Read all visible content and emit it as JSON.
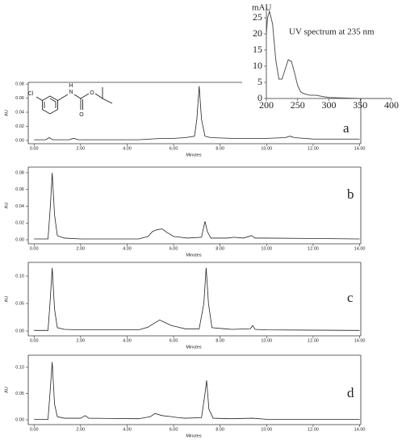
{
  "chart_data": [
    {
      "type": "line",
      "title": "UV spectrum  at 235 nm",
      "ylabel": "mAU",
      "color": "#555555",
      "x": [
        200,
        202,
        205,
        210,
        215,
        220,
        225,
        230,
        235,
        240,
        245,
        250,
        255,
        260,
        270,
        280,
        290,
        300,
        350,
        400
      ],
      "values": [
        20,
        25,
        27,
        23,
        12,
        6,
        6,
        9,
        12,
        11.5,
        8,
        4,
        2,
        1.5,
        1,
        1,
        0.6,
        0.3,
        0,
        0
      ],
      "xlim": [
        200,
        400
      ],
      "xticks": [
        200,
        250,
        300,
        350,
        400
      ],
      "ylim": [
        0,
        28
      ],
      "yticks": [
        0,
        5,
        10,
        15,
        20,
        25
      ]
    },
    {
      "type": "line",
      "panel_label": "a",
      "xlabel": "Minutes",
      "ylabel": "AU",
      "color": "#222222",
      "annotations": [
        "Cl",
        "H",
        "N",
        "O",
        "O"
      ],
      "x": [
        0,
        0.5,
        0.65,
        0.8,
        1.5,
        1.7,
        1.9,
        4.5,
        5.0,
        5.5,
        6.0,
        6.5,
        6.9,
        7.0,
        7.1,
        7.2,
        7.35,
        7.6,
        8.5,
        10.0,
        10.8,
        11.0,
        11.2,
        12,
        14
      ],
      "values": [
        0.001,
        0.001,
        0.004,
        0.001,
        0.001,
        0.003,
        0.001,
        0.001,
        0.002,
        0.003,
        0.003,
        0.004,
        0.006,
        0.03,
        0.077,
        0.03,
        0.006,
        0.004,
        0.003,
        0.003,
        0.004,
        0.006,
        0.004,
        0.002,
        0.002
      ],
      "xlim": [
        -0.25,
        14.05
      ],
      "xticks": [
        {
          "value": 0,
          "label": "0.00"
        },
        {
          "value": 2,
          "label": "2.00"
        },
        {
          "value": 4,
          "label": "4.00"
        },
        {
          "value": 6,
          "label": "6.00"
        },
        {
          "value": 8,
          "label": "8.00"
        },
        {
          "value": 10,
          "label": "10.00"
        },
        {
          "value": 12,
          "label": "12.00"
        },
        {
          "value": 14,
          "label": "14.00"
        }
      ],
      "ylim": [
        -0.0046,
        0.0823
      ],
      "yticks": [
        {
          "value": 0,
          "label": "0.00"
        },
        {
          "value": 0.02,
          "label": "0.02"
        },
        {
          "value": 0.04,
          "label": "0.04"
        },
        {
          "value": 0.06,
          "label": "0.06"
        },
        {
          "value": 0.08,
          "label": "0.08"
        }
      ]
    },
    {
      "type": "line",
      "panel_label": "b",
      "xlabel": "Minutes",
      "ylabel": "AU",
      "color": "#222222",
      "x": [
        0,
        0.6,
        0.7,
        0.78,
        0.88,
        1.0,
        1.3,
        2,
        4.5,
        4.9,
        5.1,
        5.3,
        5.5,
        5.7,
        6.0,
        6.3,
        6.6,
        7.2,
        7.35,
        7.45,
        7.6,
        8.3,
        8.6,
        9.0,
        9.35,
        9.5,
        10,
        14
      ],
      "values": [
        0.001,
        0.001,
        0.04,
        0.08,
        0.03,
        0.005,
        0.002,
        0.001,
        0.001,
        0.004,
        0.01,
        0.012,
        0.013,
        0.009,
        0.004,
        0.003,
        0.002,
        0.003,
        0.022,
        0.01,
        0.002,
        0.002,
        0.003,
        0.002,
        0.005,
        0.002,
        0.002,
        0.001
      ],
      "xlim": [
        -0.25,
        14.05
      ],
      "xticks": [
        {
          "value": 0,
          "label": "0.00"
        },
        {
          "value": 2,
          "label": "2.00"
        },
        {
          "value": 4,
          "label": "4.00"
        },
        {
          "value": 6,
          "label": "6.00"
        },
        {
          "value": 8,
          "label": "8.00"
        },
        {
          "value": 10,
          "label": "10.00"
        },
        {
          "value": 12,
          "label": "12.00"
        },
        {
          "value": 14,
          "label": "14.00"
        }
      ],
      "ylim": [
        -0.0048,
        0.0867
      ],
      "yticks": [
        {
          "value": 0,
          "label": "0.00"
        },
        {
          "value": 0.02,
          "label": "0.02"
        },
        {
          "value": 0.04,
          "label": "0.04"
        },
        {
          "value": 0.06,
          "label": "0.06"
        },
        {
          "value": 0.08,
          "label": "0.08"
        }
      ]
    },
    {
      "type": "line",
      "panel_label": "c",
      "xlabel": "Minutes",
      "ylabel": "AU",
      "color": "#222222",
      "x": [
        0,
        0.6,
        0.7,
        0.78,
        0.88,
        1.0,
        1.3,
        2,
        4.5,
        4.9,
        5.2,
        5.4,
        5.6,
        5.9,
        6.2,
        6.5,
        7.1,
        7.3,
        7.4,
        7.5,
        7.65,
        8.2,
        8.5,
        9.3,
        9.4,
        9.5,
        10,
        14
      ],
      "values": [
        0.001,
        0.001,
        0.06,
        0.115,
        0.04,
        0.006,
        0.003,
        0.002,
        0.002,
        0.007,
        0.015,
        0.02,
        0.016,
        0.01,
        0.007,
        0.004,
        0.004,
        0.05,
        0.115,
        0.05,
        0.006,
        0.004,
        0.003,
        0.004,
        0.01,
        0.003,
        0.002,
        0.001
      ],
      "xlim": [
        -0.25,
        14.05
      ],
      "xticks": [
        {
          "value": 0,
          "label": "0.00"
        },
        {
          "value": 2,
          "label": "2.00"
        },
        {
          "value": 4,
          "label": "4.00"
        },
        {
          "value": 6,
          "label": "6.00"
        },
        {
          "value": 8,
          "label": "8.00"
        },
        {
          "value": 10,
          "label": "10.00"
        },
        {
          "value": 12,
          "label": "12.00"
        },
        {
          "value": 14,
          "label": "14.00"
        }
      ],
      "ylim": [
        -0.0088,
        0.125
      ],
      "yticks": [
        {
          "value": 0,
          "label": "0.00"
        },
        {
          "value": 0.05,
          "label": "0.05"
        },
        {
          "value": 0.1,
          "label": "0.10"
        }
      ]
    },
    {
      "type": "line",
      "panel_label": "d",
      "xlabel": "Minutes",
      "ylabel": "AU",
      "color": "#222222",
      "x": [
        0,
        0.6,
        0.7,
        0.78,
        0.88,
        1.0,
        1.3,
        2.0,
        2.2,
        2.35,
        4.5,
        5.0,
        5.2,
        5.5,
        5.9,
        6.2,
        6.5,
        7.2,
        7.35,
        7.42,
        7.52,
        7.7,
        8.5,
        9.4,
        10,
        14
      ],
      "values": [
        0.001,
        0.001,
        0.06,
        0.11,
        0.03,
        0.006,
        0.003,
        0.003,
        0.008,
        0.003,
        0.002,
        0.006,
        0.012,
        0.008,
        0.006,
        0.004,
        0.003,
        0.004,
        0.05,
        0.075,
        0.02,
        0.003,
        0.002,
        0.003,
        0.001,
        0.001
      ],
      "xlim": [
        -0.25,
        14.05
      ],
      "xticks": [
        {
          "value": 0,
          "label": "0.00"
        },
        {
          "value": 2,
          "label": "2.00"
        },
        {
          "value": 4,
          "label": "4.00"
        },
        {
          "value": 6,
          "label": "6.00"
        },
        {
          "value": 8,
          "label": "8.00"
        },
        {
          "value": 10,
          "label": "10.00"
        },
        {
          "value": 12,
          "label": "12.00"
        },
        {
          "value": 14,
          "label": "14.00"
        }
      ],
      "ylim": [
        -0.0092,
        0.123
      ],
      "yticks": [
        {
          "value": 0,
          "label": "0.00"
        },
        {
          "value": 0.05,
          "label": "0.05"
        },
        {
          "value": 0.1,
          "label": "0.10"
        }
      ]
    }
  ]
}
